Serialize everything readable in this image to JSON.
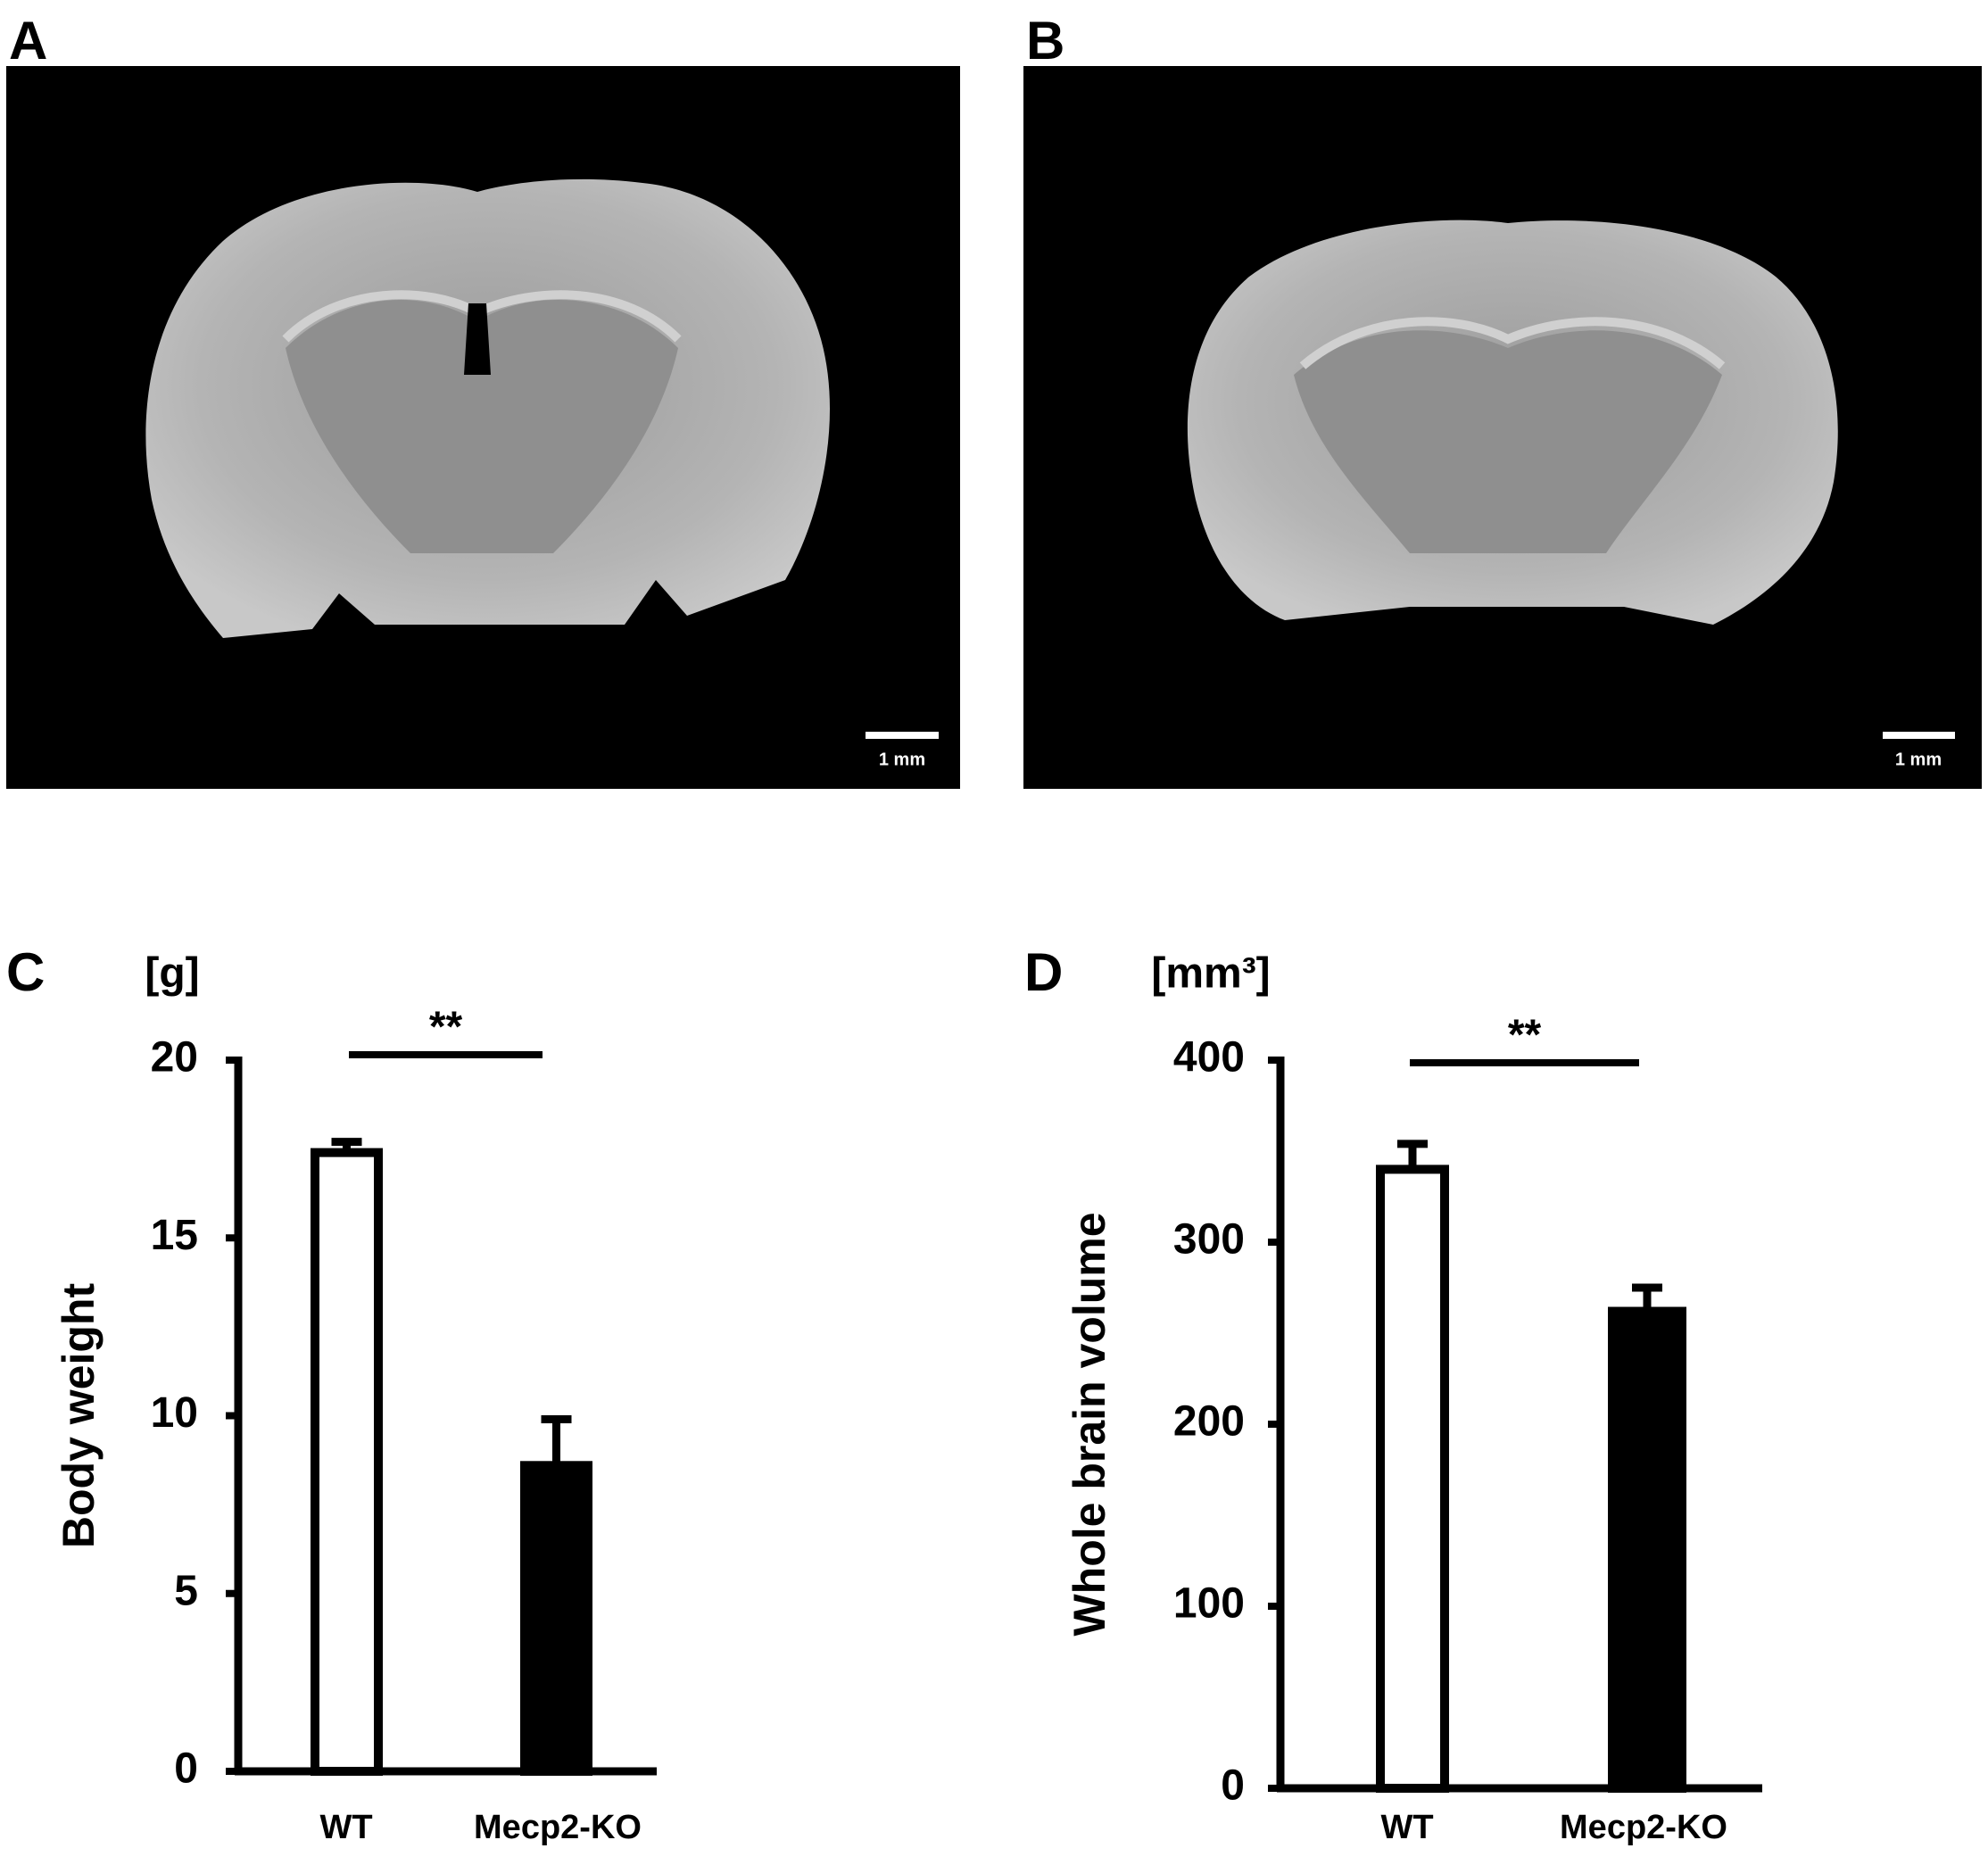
{
  "images": [
    {
      "label": "A",
      "scale_bar": "1 mm"
    },
    {
      "label": "B",
      "scale_bar": "1 mm"
    }
  ],
  "chart_data": [
    {
      "label": "C",
      "type": "bar",
      "unit_label": "[g]",
      "y_label": "Body weight",
      "categories": [
        "WT",
        "Mecp2-KO"
      ],
      "values": [
        17.4,
        8.6
      ],
      "errors": [
        0.3,
        1.3
      ],
      "colors": [
        "#ffffff",
        "#000000"
      ],
      "ylim": [
        0,
        20
      ],
      "yticks": [
        0,
        5,
        10,
        15,
        20
      ],
      "significance": "**"
    },
    {
      "label": "D",
      "type": "bar",
      "unit_label": "[mm³]",
      "y_label": "Whole brain volume",
      "categories": [
        "WT",
        "Mecp2-KO"
      ],
      "values": [
        340,
        262
      ],
      "errors": [
        14,
        13
      ],
      "colors": [
        "#ffffff",
        "#000000"
      ],
      "ylim": [
        0,
        400
      ],
      "yticks": [
        0,
        100,
        200,
        300,
        400
      ],
      "significance": "**"
    }
  ]
}
